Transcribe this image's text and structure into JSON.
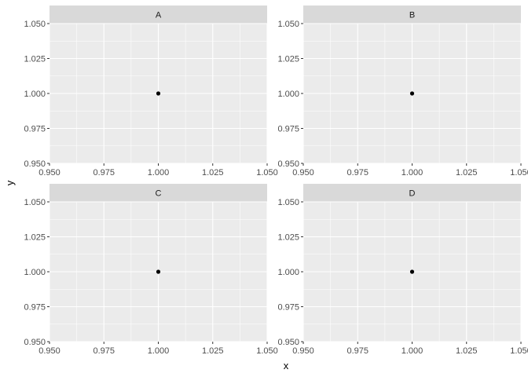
{
  "chart_data": {
    "type": "scatter",
    "facets": [
      {
        "label": "A",
        "points": [
          {
            "x": 1.0,
            "y": 1.0
          }
        ]
      },
      {
        "label": "B",
        "points": [
          {
            "x": 1.0,
            "y": 1.0
          }
        ]
      },
      {
        "label": "C",
        "points": [
          {
            "x": 1.0,
            "y": 1.0
          }
        ]
      },
      {
        "label": "D",
        "points": [
          {
            "x": 1.0,
            "y": 1.0
          }
        ]
      }
    ],
    "xlabel": "x",
    "ylabel": "y",
    "xlim": [
      0.95,
      1.05
    ],
    "ylim": [
      0.95,
      1.05
    ],
    "x_ticks": [
      0.95,
      0.975,
      1.0,
      1.025,
      1.05
    ],
    "y_ticks": [
      0.95,
      0.975,
      1.0,
      1.025,
      1.05
    ],
    "x_tick_labels": [
      "0.950",
      "0.975",
      "1.000",
      "1.025",
      "1.050"
    ],
    "y_tick_labels": [
      "0.950",
      "0.975",
      "1.000",
      "1.025",
      "1.050"
    ],
    "grid": true,
    "colors": {
      "panel_background": "#ebebeb",
      "strip_background": "#d9d9d9",
      "grid_major": "#ffffff",
      "point": "#000000"
    }
  }
}
